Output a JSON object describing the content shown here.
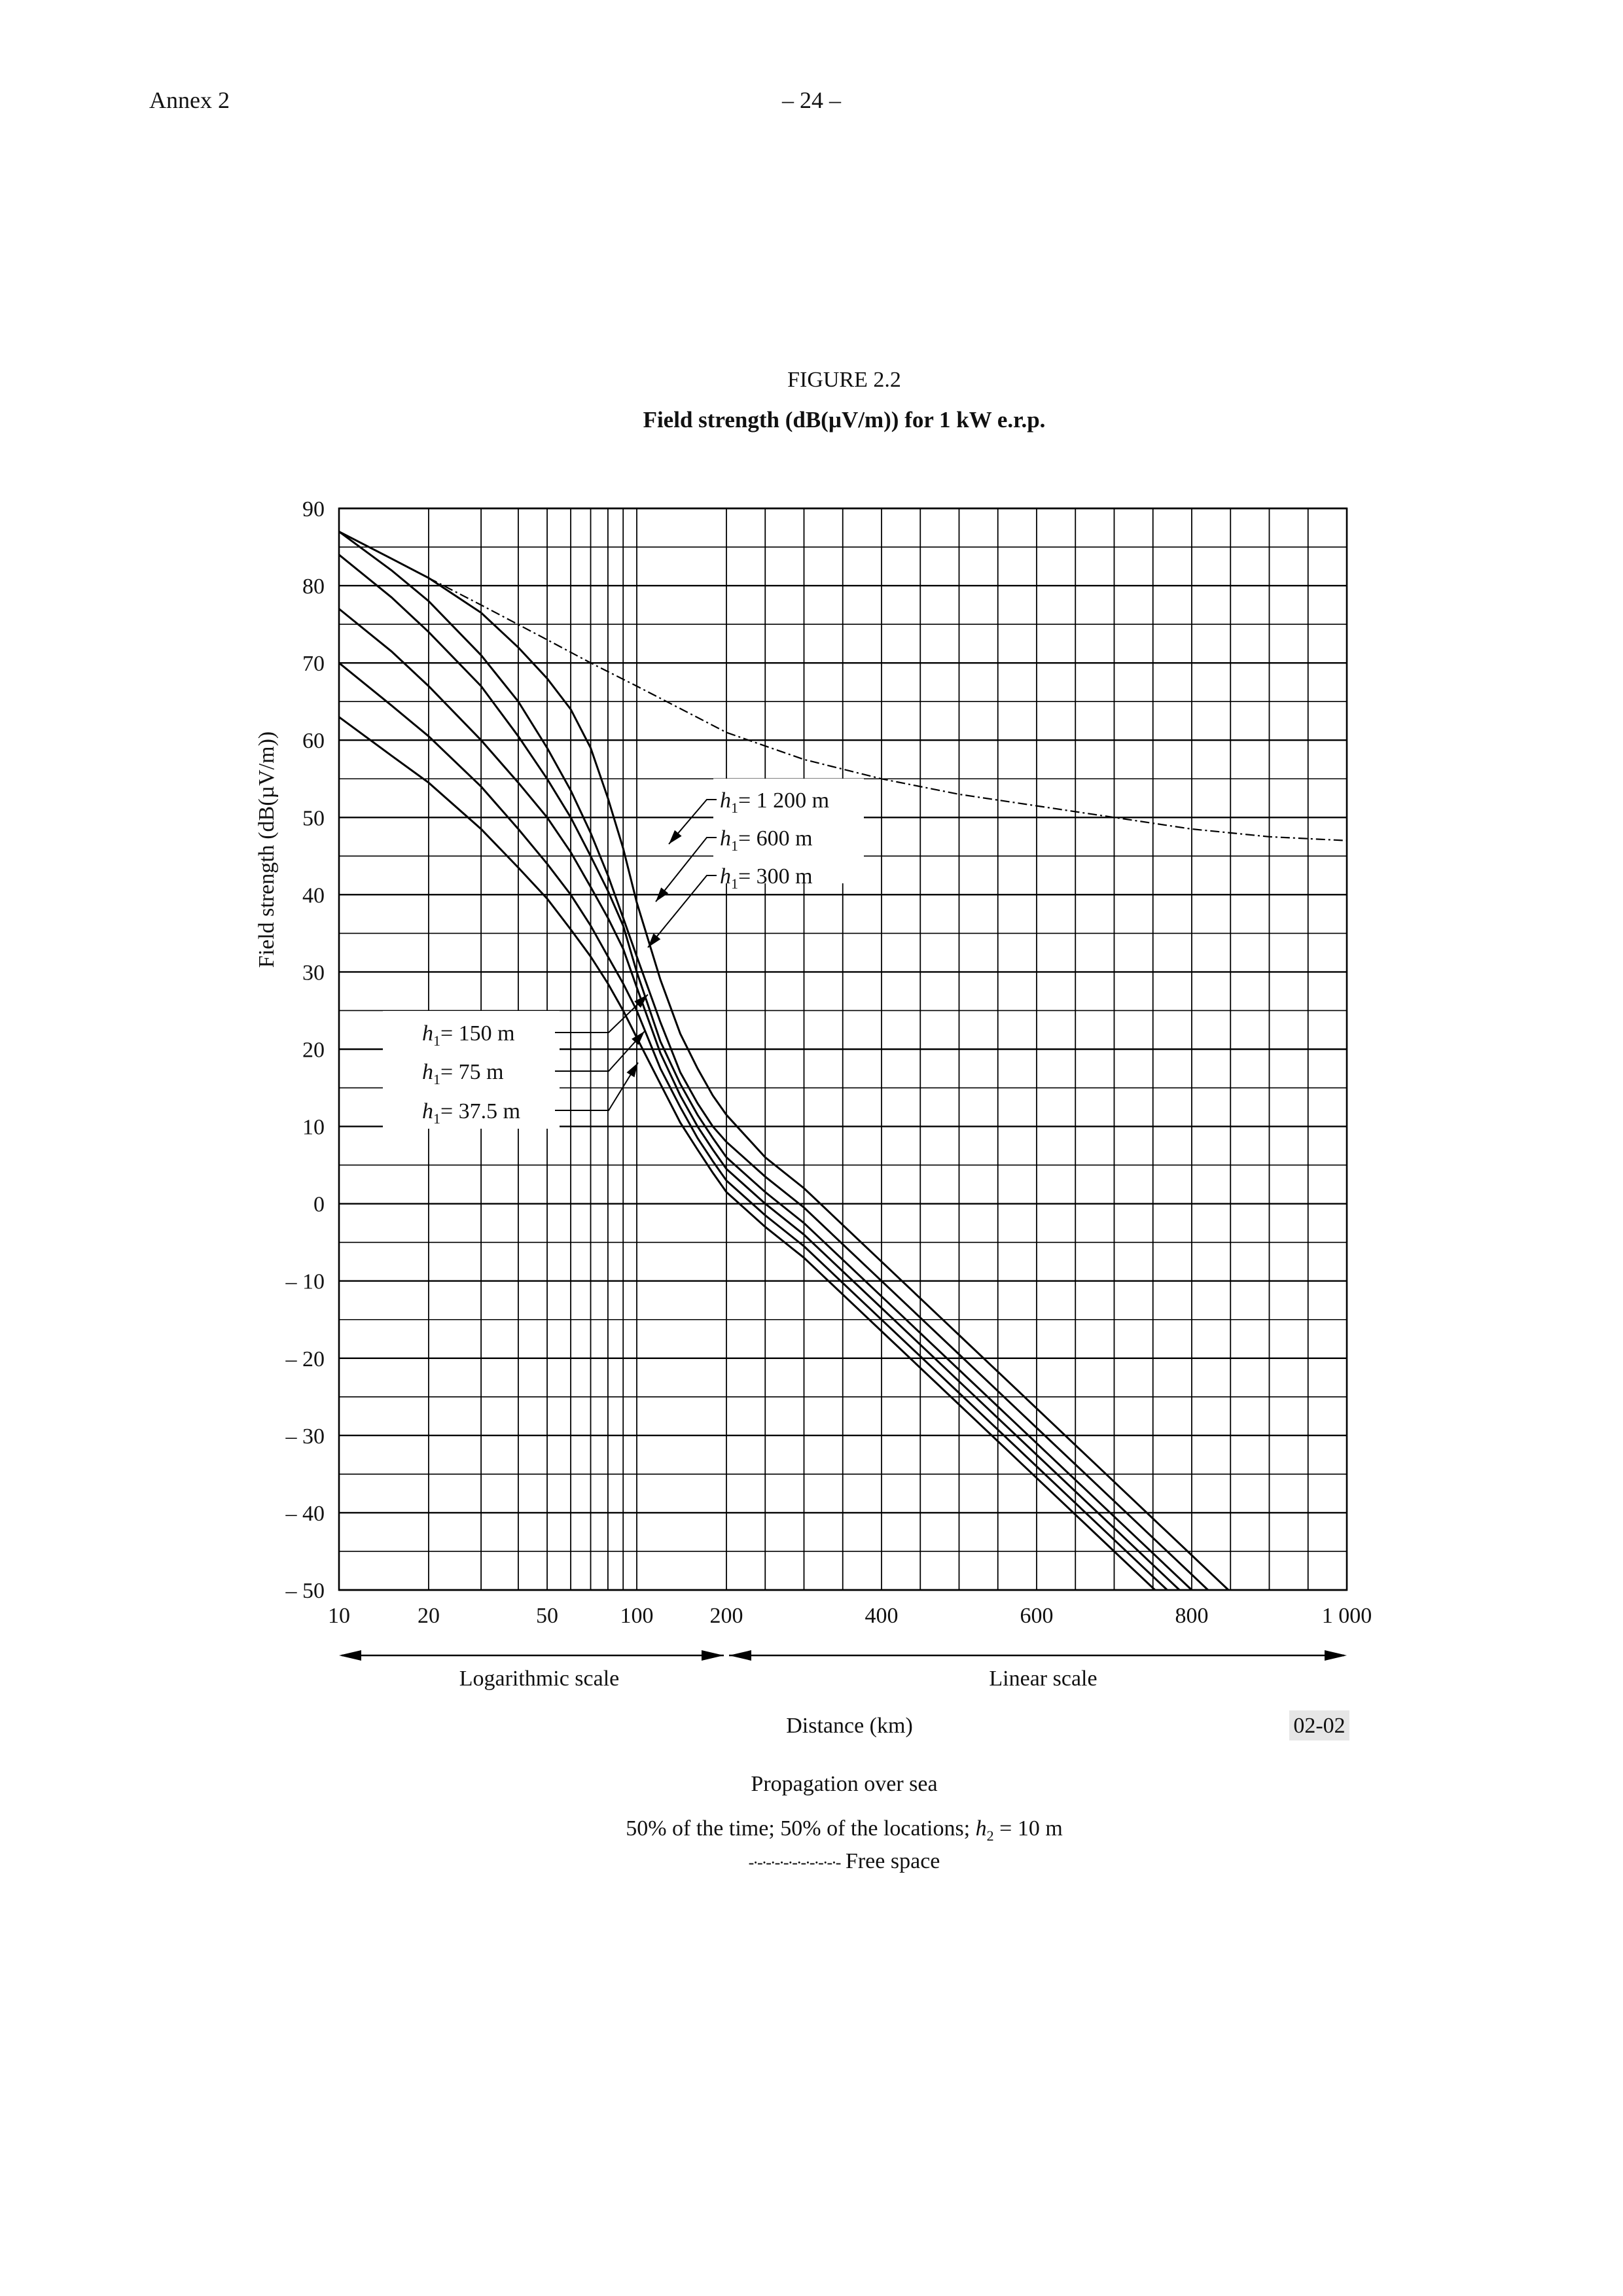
{
  "page": {
    "header_left": "Annex 2",
    "page_number": "– 24 –"
  },
  "figure": {
    "number": "FIGURE 2.2",
    "title": "Field strength (dB(µV/m)) for 1 kW e.r.p.",
    "code": "02-02"
  },
  "captions": {
    "line1": "Propagation over sea",
    "line2_pre": "50% of the time; 50% of the locations; ",
    "line2_h": "h",
    "line2_sub": "2",
    "line2_post": " = 10 m",
    "legend_dash": "-·-·-·-·-·-·-·-·-·-·-",
    "legend_label": "Free space"
  },
  "chart_data": {
    "type": "line",
    "title": "Field strength (dB(µV/m)) for 1 kW e.r.p.",
    "xlabel": "Distance (km)",
    "ylabel": "Field strength (dB(µV/m))",
    "ylim": [
      -50,
      90
    ],
    "xlim": [
      10,
      1000
    ],
    "x_scale": "logarithmic 10–200 km, linear 200–1000 km",
    "scale_labels": {
      "log": "Logarithmic scale",
      "linear": "Linear scale"
    },
    "x_tick_labels": [
      "10",
      "20",
      "50",
      "100",
      "200",
      "400",
      "600",
      "800",
      "1 000"
    ],
    "y_tick_labels": [
      "90",
      "80",
      "70",
      "60",
      "50",
      "40",
      "30",
      "20",
      "10",
      "0",
      "– 10",
      "– 20",
      "– 30",
      "– 40",
      "– 50"
    ],
    "grid": true,
    "series": [
      {
        "name": "h1 = 1 200 m",
        "label_h": "h",
        "label_sub": "1",
        "label_text": "= 1 200 m",
        "x": [
          10,
          15,
          20,
          30,
          40,
          50,
          60,
          70,
          80,
          90,
          100,
          120,
          140,
          160,
          180,
          200,
          250,
          300,
          400,
          500,
          600,
          700,
          800,
          900
        ],
        "y": [
          87,
          83.5,
          81,
          76.5,
          72,
          68,
          64,
          59,
          52.5,
          46,
          39,
          29,
          22,
          17.5,
          14,
          11.5,
          6,
          2,
          -7.5,
          -17,
          -26.5,
          -36,
          -45.5,
          -55
        ]
      },
      {
        "name": "h1 = 600 m",
        "label_h": "h",
        "label_sub": "1",
        "label_text": "=   600 m",
        "x": [
          10,
          15,
          20,
          30,
          40,
          50,
          60,
          70,
          80,
          90,
          100,
          120,
          140,
          160,
          180,
          200,
          250,
          300,
          400,
          500,
          600,
          700,
          800,
          900
        ],
        "y": [
          87,
          82,
          78,
          71,
          65,
          59,
          53.5,
          48,
          42.5,
          37,
          32,
          23.5,
          17,
          13,
          10,
          8,
          3.5,
          -0.5,
          -10,
          -19.5,
          -29,
          -38.5,
          -48,
          -57.5
        ]
      },
      {
        "name": "h1 = 300 m",
        "label_h": "h",
        "label_sub": "1",
        "label_text": "=   300 m",
        "x": [
          10,
          15,
          20,
          30,
          40,
          50,
          60,
          70,
          80,
          90,
          100,
          120,
          140,
          160,
          180,
          200,
          250,
          300,
          400,
          500,
          600,
          700,
          800,
          900
        ],
        "y": [
          84,
          78.5,
          74,
          67,
          60.5,
          55,
          50,
          45,
          40.5,
          36,
          30,
          21,
          15.5,
          11.5,
          8.5,
          6,
          1.5,
          -2.5,
          -12,
          -21.5,
          -31,
          -40.5,
          -50,
          -59.5
        ]
      },
      {
        "name": "h1 = 150 m",
        "label_h": "h",
        "label_sub": "1",
        "label_text": "= 150   m",
        "x": [
          10,
          15,
          20,
          30,
          40,
          50,
          60,
          70,
          80,
          90,
          100,
          120,
          140,
          160,
          180,
          200,
          250,
          300,
          400,
          500,
          600,
          700,
          800,
          900
        ],
        "y": [
          77,
          71.5,
          67,
          60,
          54.5,
          50,
          45.5,
          41,
          37,
          33,
          28,
          19.5,
          14,
          10,
          7,
          4.5,
          0,
          -4,
          -13.5,
          -23,
          -32.5,
          -42,
          -51.5,
          -61
        ]
      },
      {
        "name": "h1 = 75 m",
        "label_h": "h",
        "label_sub": "1",
        "label_text": "=   75   m",
        "x": [
          10,
          15,
          20,
          30,
          40,
          50,
          60,
          70,
          80,
          90,
          100,
          120,
          140,
          160,
          180,
          200,
          250,
          300,
          400,
          500,
          600,
          700,
          800,
          900
        ],
        "y": [
          70,
          64.5,
          60.5,
          54,
          48.5,
          44,
          40,
          36,
          32,
          28.5,
          25,
          17.5,
          12.5,
          8.5,
          5.5,
          3,
          -1.5,
          -5.5,
          -15,
          -24.5,
          -34,
          -43.5,
          -53,
          -62.5
        ]
      },
      {
        "name": "h1 = 37.5 m",
        "label_h": "h",
        "label_sub": "1",
        "label_text": "=   37.5 m",
        "x": [
          10,
          15,
          20,
          30,
          40,
          50,
          60,
          70,
          80,
          90,
          100,
          120,
          140,
          160,
          180,
          200,
          250,
          300,
          400,
          500,
          600,
          700,
          800,
          900
        ],
        "y": [
          63,
          58,
          54.5,
          48.5,
          43.5,
          39.5,
          35.5,
          32,
          28.5,
          25,
          21.5,
          15.5,
          10.5,
          7,
          4,
          1.5,
          -3,
          -7,
          -16.5,
          -26,
          -35.5,
          -45,
          -54.5,
          -64
        ]
      },
      {
        "name": "Free space",
        "dashed": true,
        "x": [
          20,
          30,
          50,
          70,
          100,
          200,
          300,
          400,
          500,
          600,
          700,
          800,
          900,
          1000
        ],
        "y": [
          81,
          77.5,
          73,
          70,
          67,
          61,
          57.5,
          55,
          53,
          51.5,
          50,
          48.5,
          47.5,
          47
        ]
      }
    ]
  }
}
